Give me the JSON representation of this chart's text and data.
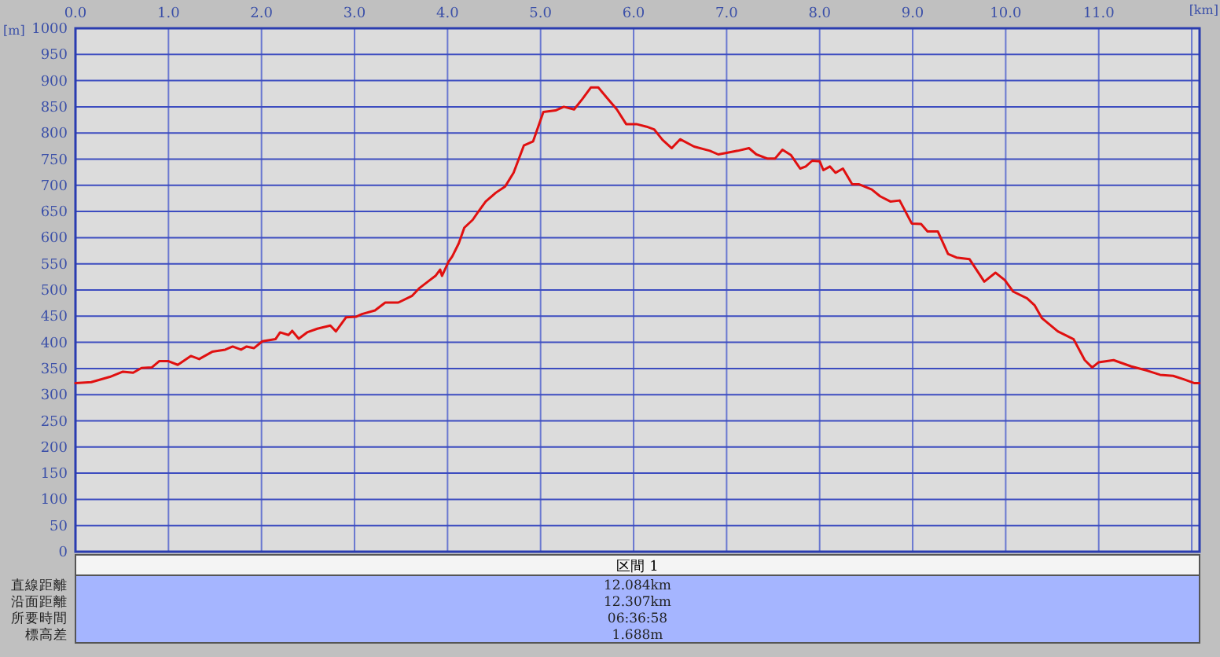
{
  "chart_data": {
    "type": "line",
    "xlabel": "[km]",
    "ylabel": "[m]",
    "xlim": [
      0,
      12.084
    ],
    "ylim": [
      0,
      1000
    ],
    "xticks": [
      {
        "value": 0,
        "label": "0.0"
      },
      {
        "value": 1,
        "label": "1.0"
      },
      {
        "value": 2,
        "label": "2.0"
      },
      {
        "value": 3,
        "label": "3.0"
      },
      {
        "value": 4,
        "label": "4.0"
      },
      {
        "value": 5,
        "label": "5.0"
      },
      {
        "value": 6,
        "label": "6.0"
      },
      {
        "value": 7,
        "label": "7.0"
      },
      {
        "value": 8,
        "label": "8.0"
      },
      {
        "value": 9,
        "label": "9.0"
      },
      {
        "value": 10,
        "label": "10.0"
      },
      {
        "value": 11,
        "label": "11.0"
      },
      {
        "value": 12,
        "label": null
      }
    ],
    "yticks": [
      0,
      50,
      100,
      150,
      200,
      250,
      300,
      350,
      400,
      450,
      500,
      550,
      600,
      650,
      700,
      750,
      800,
      850,
      900,
      950,
      1000
    ],
    "grid": true,
    "line_style": "solid",
    "series": [
      {
        "color": "#e01010",
        "x": [
          0,
          0.17,
          0.37,
          0.51,
          0.62,
          0.71,
          0.82,
          0.9,
          1.0,
          1.1,
          1.24,
          1.33,
          1.47,
          1.61,
          1.69,
          1.78,
          1.84,
          1.92,
          2.01,
          2.15,
          2.2,
          2.29,
          2.33,
          2.4,
          2.49,
          2.6,
          2.74,
          2.8,
          2.91,
          3.02,
          3.08,
          3.22,
          3.33,
          3.47,
          3.62,
          3.7,
          3.81,
          3.87,
          3.92,
          3.94,
          4.01,
          4.05,
          4.12,
          4.18,
          4.27,
          4.32,
          4.41,
          4.52,
          4.62,
          4.71,
          4.82,
          4.92,
          5.03,
          5.16,
          5.25,
          5.36,
          5.45,
          5.54,
          5.62,
          5.71,
          5.82,
          5.92,
          6.03,
          6.14,
          6.22,
          6.31,
          6.41,
          6.5,
          6.65,
          6.82,
          6.91,
          7.0,
          7.12,
          7.24,
          7.32,
          7.44,
          7.52,
          7.6,
          7.69,
          7.79,
          7.85,
          7.92,
          8.0,
          8.04,
          8.11,
          8.17,
          8.25,
          8.35,
          8.42,
          8.56,
          8.65,
          8.76,
          8.86,
          8.99,
          9.09,
          9.16,
          9.27,
          9.38,
          9.47,
          9.61,
          9.77,
          9.89,
          9.99,
          10.08,
          10.23,
          10.31,
          10.39,
          10.56,
          10.73,
          10.85,
          10.93,
          11.0,
          11.16,
          11.35,
          11.52,
          11.66,
          11.8,
          11.92,
          12.03,
          12.08
        ],
        "values": [
          322,
          324,
          334,
          344,
          342,
          351,
          352,
          364,
          364,
          357,
          374,
          368,
          382,
          386,
          392,
          386,
          392,
          389,
          402,
          406,
          419,
          414,
          422,
          407,
          419,
          426,
          432,
          421,
          448,
          449,
          454,
          461,
          476,
          476,
          489,
          504,
          519,
          527,
          539,
          527,
          554,
          564,
          589,
          619,
          634,
          647,
          669,
          686,
          698,
          724,
          776,
          784,
          840,
          843,
          850,
          845,
          865,
          887,
          887,
          868,
          845,
          817,
          817,
          812,
          807,
          787,
          771,
          788,
          774,
          766,
          759,
          762,
          766,
          771,
          759,
          751,
          751,
          768,
          758,
          732,
          736,
          747,
          746,
          729,
          736,
          724,
          732,
          702,
          702,
          692,
          679,
          669,
          671,
          627,
          626,
          612,
          612,
          569,
          562,
          559,
          516,
          533,
          519,
          497,
          484,
          471,
          446,
          421,
          406,
          366,
          352,
          362,
          366,
          354,
          346,
          338,
          336,
          329,
          322,
          322
        ]
      }
    ],
    "annotations": [
      "区間 1",
      "直線距離",
      "12.084km",
      "沿面距離",
      "12.307km",
      "所要時間",
      "06:36:58",
      "標高差",
      "1.688m"
    ]
  }
}
